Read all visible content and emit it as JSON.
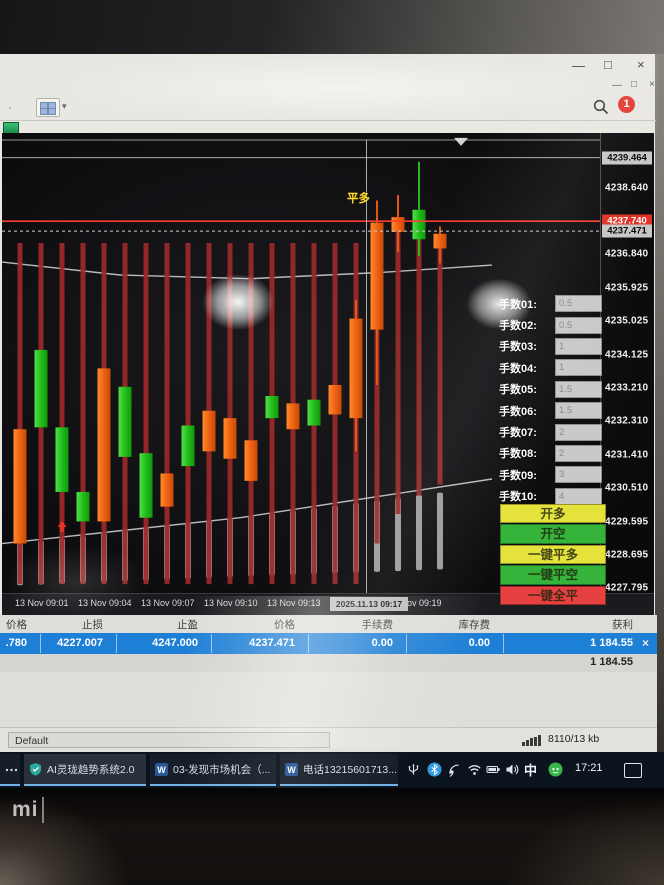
{
  "window": {
    "outer_controls": [
      "—",
      "□",
      "×"
    ],
    "inner_controls": [
      "—",
      "□",
      "×"
    ],
    "notification_badge": "1",
    "dropdown_caret": "▾",
    "overflow_dots": "·"
  },
  "chart": {
    "position_label": "平多",
    "ask_price": "4237.740",
    "bid_price": "4237.471",
    "crosshair_price": "4239.464",
    "crosshair_time": "2025.11.13 09:17",
    "price_ticks": [
      "4238.640",
      "4236.840",
      "4235.925",
      "4235.025",
      "4234.125",
      "4233.210",
      "4232.310",
      "4231.410",
      "4230.510",
      "4229.595",
      "4228.695",
      "4227.795"
    ],
    "time_ticks": [
      {
        "label": "13 Nov 09:01",
        "minute": 1
      },
      {
        "label": "13 Nov 09:04",
        "minute": 4
      },
      {
        "label": "13 Nov 09:07",
        "minute": 7
      },
      {
        "label": "13 Nov 09:10",
        "minute": 10
      },
      {
        "label": "13 Nov 09:13",
        "minute": 13
      },
      {
        "label": "3 Nov 09:19",
        "minute": 19
      }
    ]
  },
  "chart_data": {
    "type": "candlestick",
    "timeframe": "M1",
    "date": "2025.11.13",
    "price_axis": {
      "min": 4227.5,
      "max": 4239.75
    },
    "ask": 4237.74,
    "bid": 4237.471,
    "crosshair": {
      "price": 4239.464,
      "minute": 16.5
    },
    "candles": [
      {
        "t": "09:00",
        "o": 4229.0,
        "h": 4234.5,
        "l": 4228.4,
        "c": 4232.1,
        "rl": [
          4237.15,
          4227.9
        ]
      },
      {
        "t": "09:01",
        "o": 4234.25,
        "h": 4235.1,
        "l": 4230.9,
        "c": 4232.15,
        "rl": [
          4237.15,
          4227.9
        ]
      },
      {
        "t": "09:02",
        "o": 4232.15,
        "h": 4233.2,
        "l": 4229.8,
        "c": 4230.4,
        "rl": [
          4237.15,
          4227.9
        ]
      },
      {
        "t": "09:03",
        "o": 4230.4,
        "h": 4231.5,
        "l": 4228.7,
        "c": 4229.6,
        "rl": [
          4237.15,
          4227.9
        ]
      },
      {
        "t": "09:04",
        "o": 4229.6,
        "h": 4234.5,
        "l": 4228.6,
        "c": 4233.75,
        "rl": [
          4237.15,
          4227.9
        ]
      },
      {
        "t": "09:05",
        "o": 4233.25,
        "h": 4234.2,
        "l": 4230.2,
        "c": 4231.35,
        "rl": [
          4237.15,
          4227.9
        ]
      },
      {
        "t": "09:06",
        "o": 4231.45,
        "h": 4232.5,
        "l": 4228.8,
        "c": 4229.7,
        "rl": [
          4237.15,
          4227.9
        ]
      },
      {
        "t": "09:07",
        "o": 4230.0,
        "h": 4232.0,
        "l": 4229.0,
        "c": 4230.9,
        "rl": [
          4237.15,
          4227.9
        ]
      },
      {
        "t": "09:08",
        "o": 4232.2,
        "h": 4233.2,
        "l": 4230.1,
        "c": 4231.1,
        "rl": [
          4237.15,
          4227.9
        ]
      },
      {
        "t": "09:09",
        "o": 4231.5,
        "h": 4233.7,
        "l": 4230.5,
        "c": 4232.6,
        "rl": [
          4237.15,
          4227.9
        ]
      },
      {
        "t": "09:10",
        "o": 4231.3,
        "h": 4233.5,
        "l": 4230.3,
        "c": 4232.4,
        "rl": [
          4237.15,
          4227.9
        ]
      },
      {
        "t": "09:11",
        "o": 4230.7,
        "h": 4232.9,
        "l": 4229.8,
        "c": 4231.8,
        "rl": [
          4237.15,
          4227.9
        ]
      },
      {
        "t": "09:12",
        "o": 4233.0,
        "h": 4233.9,
        "l": 4231.3,
        "c": 4232.4,
        "rl": [
          4237.15,
          4227.9
        ]
      },
      {
        "t": "09:13",
        "o": 4232.1,
        "h": 4233.8,
        "l": 4231.0,
        "c": 4232.8,
        "rl": [
          4237.15,
          4227.9
        ]
      },
      {
        "t": "09:14",
        "o": 4232.9,
        "h": 4233.9,
        "l": 4231.2,
        "c": 4232.2,
        "rl": [
          4237.15,
          4227.9
        ]
      },
      {
        "t": "09:15",
        "o": 4232.5,
        "h": 4234.3,
        "l": 4231.4,
        "c": 4233.3,
        "rl": [
          4237.15,
          4227.9
        ]
      },
      {
        "t": "09:16",
        "o": 4232.4,
        "h": 4235.6,
        "l": 4231.5,
        "c": 4235.1,
        "rl": [
          4237.15,
          4227.9
        ]
      },
      {
        "t": "09:17",
        "o": 4234.8,
        "h": 4238.3,
        "l": 4233.3,
        "c": 4237.7,
        "rl": [
          4234.8,
          4229.0
        ]
      },
      {
        "t": "09:18",
        "o": 4237.45,
        "h": 4238.45,
        "l": 4236.9,
        "c": 4237.85,
        "rl": [
          4237.45,
          4229.8
        ]
      },
      {
        "t": "09:19",
        "o": 4238.05,
        "h": 4239.35,
        "l": 4236.8,
        "c": 4237.25,
        "rl": [
          4237.25,
          4230.3
        ]
      },
      {
        "t": "09:20",
        "o": 4237.0,
        "h": 4237.6,
        "l": 4236.6,
        "c": 4237.4,
        "rl": [
          4237.0,
          4230.6
        ]
      }
    ],
    "bands": {
      "upper": [
        [
          2,
          4236.63
        ],
        [
          120,
          4236.28
        ],
        [
          250,
          4236.18
        ],
        [
          380,
          4236.35
        ],
        [
          492,
          4236.55
        ]
      ],
      "lower": [
        [
          2,
          4229.0
        ],
        [
          240,
          4229.7
        ],
        [
          492,
          4230.75
        ]
      ]
    },
    "lower_bars": {
      "top_line": [
        [
          2,
          4228.95
        ],
        [
          492,
          4230.55
        ]
      ],
      "bottom_line": [
        [
          2,
          4227.85
        ],
        [
          492,
          4228.35
        ]
      ]
    },
    "markers": [
      {
        "t": "09:02",
        "price": 4229.45,
        "type": "red-up-arrow"
      },
      {
        "t": "09:21",
        "price": 4240.0,
        "type": "white-down-triangle"
      }
    ],
    "legend_position": "none",
    "grid": false
  },
  "lots_panel": {
    "rows": [
      {
        "label": "手数01:",
        "value": "0.5"
      },
      {
        "label": "手数02:",
        "value": "0.5"
      },
      {
        "label": "手数03:",
        "value": "1"
      },
      {
        "label": "手数04:",
        "value": "1"
      },
      {
        "label": "手数05:",
        "value": "1.5"
      },
      {
        "label": "手数06:",
        "value": "1.5"
      },
      {
        "label": "手数07:",
        "value": "2"
      },
      {
        "label": "手数08:",
        "value": "2"
      },
      {
        "label": "手数09:",
        "value": "3"
      },
      {
        "label": "手数10:",
        "value": "4"
      }
    ]
  },
  "trade_buttons": [
    {
      "label": "开多",
      "color": "#e6e23c",
      "name": "open-long-button"
    },
    {
      "label": "开空",
      "color": "#35b33a",
      "name": "open-short-button"
    },
    {
      "label": "一键平多",
      "color": "#e6e23c",
      "name": "close-all-long-button"
    },
    {
      "label": "一键平空",
      "color": "#35b33a",
      "name": "close-all-short-button"
    },
    {
      "label": "一键全平",
      "color": "#e64040",
      "name": "close-everything-button"
    }
  ],
  "trade_table": {
    "columns": [
      "价格",
      "止损",
      "止盈",
      "价格",
      "手续费",
      "库存费",
      "获利"
    ],
    "selected_row": [
      ".780",
      "4227.007",
      "4247.000",
      "4237.471",
      "0.00",
      "0.00",
      "1 184.55"
    ],
    "close_icon": "×",
    "total_row_profit": "1 184.55"
  },
  "status_bar": {
    "profile": "Default",
    "traffic": "8110/13 kb"
  },
  "taskbar": {
    "items": [
      {
        "label": "…",
        "icon": "more"
      },
      {
        "label": "AI灵珑趋势系统2.0",
        "icon": "shield"
      },
      {
        "label": "03-发现市场机会（...",
        "icon": "word"
      },
      {
        "label": "电话13215601713....",
        "icon": "word"
      }
    ],
    "tray_icons": [
      "usb-icon",
      "bluetooth-icon",
      "location-icon",
      "wifi-icon",
      "battery-icon",
      "volume-icon",
      "security-icon"
    ],
    "ime_label": "中",
    "time": "17:21"
  },
  "bezel": {
    "logo": "mi"
  },
  "colors": {
    "candle_up": "#f2691c",
    "candle_down": "#27c224",
    "range_line": "#9b2a2a",
    "ask_red": "#e03024",
    "selected_row_blue": "#1e7fd6",
    "taskbar_underline": "#6fb3e8"
  }
}
